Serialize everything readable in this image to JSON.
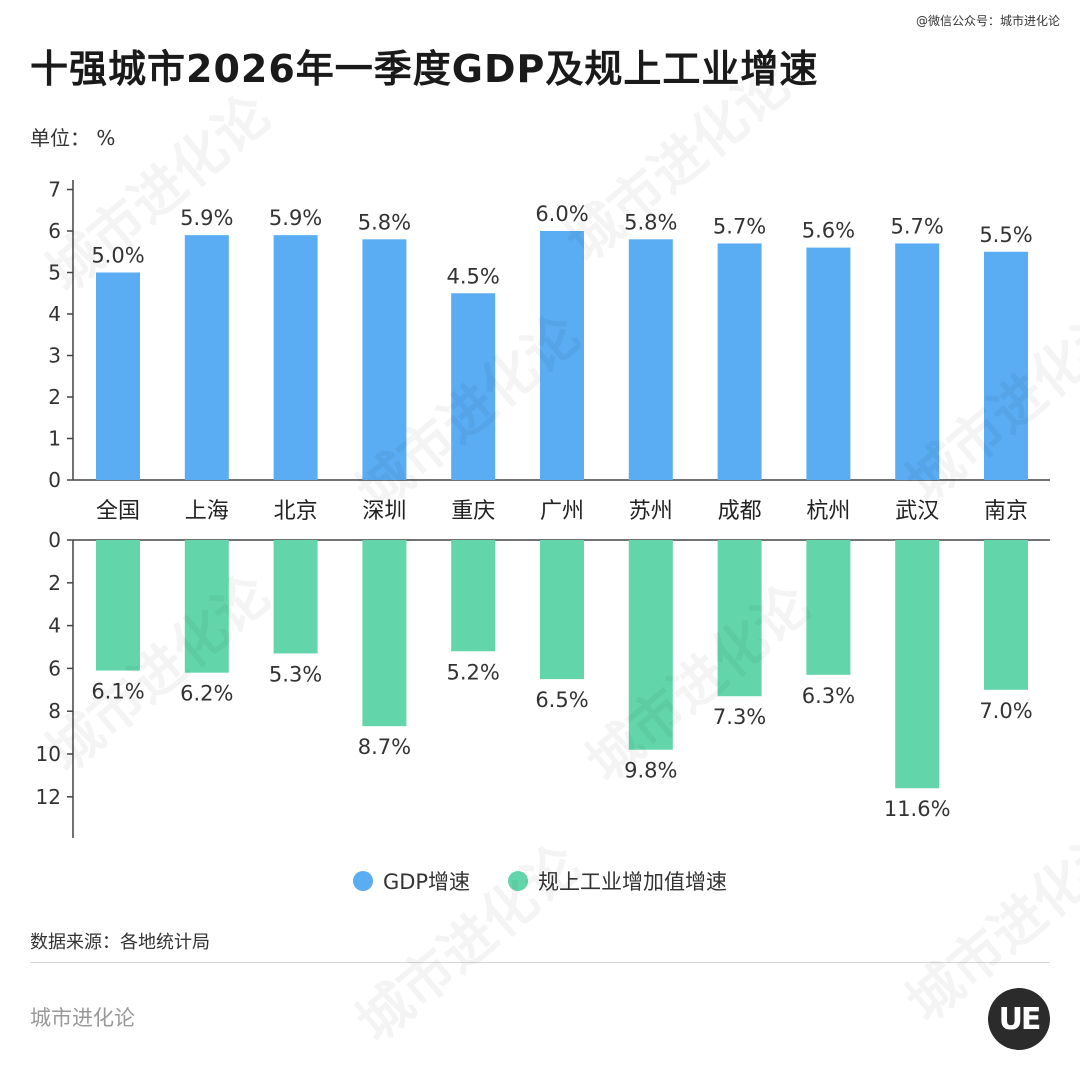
{
  "watermark_top": "@微信公众号：城市进化论",
  "title": "十强城市2026年一季度GDP及规上工业增速",
  "unit_label": "单位：  %",
  "source": "数据来源：各地统计局",
  "brand": "城市进化论",
  "logo_text": "UE",
  "watermark_text": "城市进化论",
  "colors": {
    "gdp": "#5aacf3",
    "industry": "#62d6aa"
  },
  "chart_data": {
    "type": "bar",
    "title": "十强城市2026年一季度GDP及规上工业增速",
    "categories": [
      "全国",
      "上海",
      "北京",
      "深圳",
      "重庆",
      "广州",
      "苏州",
      "成都",
      "杭州",
      "武汉",
      "南京"
    ],
    "series": [
      {
        "name": "GDP增速",
        "values": [
          5.0,
          5.9,
          5.9,
          5.8,
          4.5,
          6.0,
          5.8,
          5.7,
          5.6,
          5.7,
          5.5
        ],
        "labels": [
          "5.0%",
          "5.9%",
          "5.9%",
          "5.8%",
          "4.5%",
          "6.0%",
          "5.8%",
          "5.7%",
          "5.6%",
          "5.7%",
          "5.5%"
        ]
      },
      {
        "name": "规上工业增加值增速",
        "values": [
          6.1,
          6.2,
          5.3,
          8.7,
          5.2,
          6.5,
          9.8,
          7.3,
          6.3,
          11.6,
          7.0
        ],
        "labels": [
          "6.1%",
          "6.2%",
          "5.3%",
          "8.7%",
          "5.2%",
          "6.5%",
          "9.8%",
          "7.3%",
          "6.3%",
          "11.6%",
          "7.0%"
        ]
      }
    ],
    "top_axis": {
      "ylim": [
        0,
        7
      ],
      "ticks": [
        "0",
        "1",
        "2",
        "3",
        "4",
        "5",
        "6",
        "7"
      ]
    },
    "bottom_axis": {
      "ylim": [
        0,
        13
      ],
      "ticks": [
        "0",
        "2",
        "4",
        "6",
        "8",
        "10",
        "12"
      ]
    },
    "legend_position": "bottom-center",
    "grid": false
  }
}
